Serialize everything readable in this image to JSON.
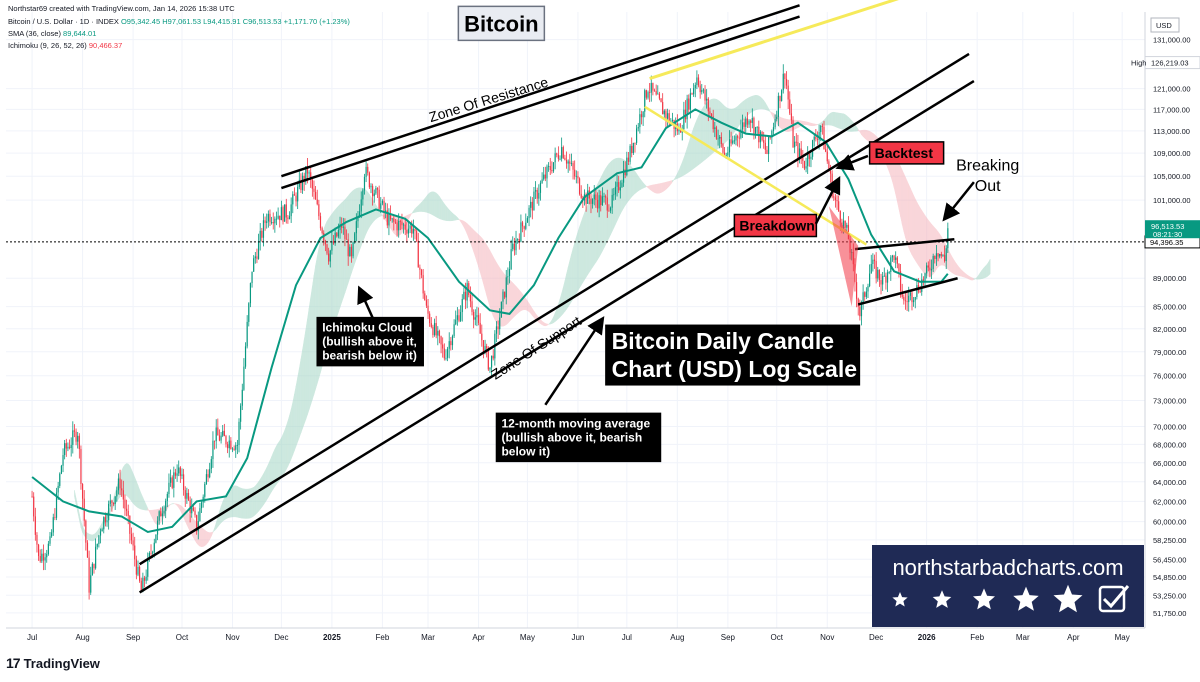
{
  "header": {
    "creator": "Northstar69 created with TradingView.com, Jan 14, 2026 15:38 UTC",
    "symbol": "Bitcoin / U.S. Dollar · 1D · INDEX",
    "ohlc": "O95,342.45  H97,061.53  L94,415.91  C96,513.53  +1,171.70 (+1.23%)",
    "sma": "SMA (36, close)",
    "sma_value": "89,644.01",
    "ichimoku": "Ichimoku (9, 26, 52, 26)",
    "ichimoku_value": "90,466.37"
  },
  "watermark": {
    "logo": "17",
    "text": "TradingView"
  },
  "brand": {
    "site": "northstarbadcharts.com"
  },
  "colors": {
    "up": "#089981",
    "down": "#f23645",
    "sma": "#089981",
    "cloud_up": "#a5d6c5",
    "cloud_down": "#f5b5bc",
    "gold": "#f6ea5a",
    "brand_bg": "#1f2a55"
  },
  "chart_data": {
    "type": "candlestick",
    "title": "Bitcoin Daily Candle Chart (USD) Log Scale",
    "y_scale": "log",
    "currency": "USD",
    "ylim": [
      50500,
      137000
    ],
    "y_ticks": [
      "131,000.00",
      "126,219.03",
      "121,000.00",
      "117,000.00",
      "113,000.00",
      "109,000.00",
      "105,000.00",
      "101,000.00",
      "94,396.35",
      "89,000.00",
      "85,000.00",
      "82,000.00",
      "79,000.00",
      "76,000.00",
      "73,000.00",
      "70,000.00",
      "68,000.00",
      "66,000.00",
      "64,000.00",
      "62,000.00",
      "60,000.00",
      "58,250.00",
      "56,450.00",
      "54,850.00",
      "53,250.00",
      "51,750.00"
    ],
    "x_ticks": [
      "Jul",
      "Aug",
      "Sep",
      "Oct",
      "Nov",
      "Dec",
      "2025",
      "Feb",
      "Mar",
      "Apr",
      "May",
      "Jun",
      "Jul",
      "Aug",
      "Sep",
      "Oct",
      "Nov",
      "Dec",
      "2026",
      "Feb",
      "Mar",
      "Apr",
      "May"
    ],
    "x_tick_dates": [
      "2024-07-01",
      "2024-08-01",
      "2024-09-01",
      "2024-10-01",
      "2024-11-01",
      "2024-12-01",
      "2025-01-01",
      "2025-02-01",
      "2025-03-01",
      "2025-04-01",
      "2025-05-01",
      "2025-06-01",
      "2025-07-01",
      "2025-08-01",
      "2025-09-01",
      "2025-10-01",
      "2025-11-01",
      "2025-12-01",
      "2026-01-01",
      "2026-02-01",
      "2026-03-01",
      "2026-04-01",
      "2026-05-01"
    ],
    "last_price": {
      "label": "96,513.53",
      "value": 96513.53,
      "countdown": "08:21:30"
    },
    "high_marker": {
      "label": "High",
      "value": "126,219.03"
    },
    "dotted_level": "94,396.35",
    "unit_label": "USD",
    "price_path": [
      [
        "2024-07-01",
        62500
      ],
      [
        "2024-07-05",
        56500
      ],
      [
        "2024-07-12",
        57800
      ],
      [
        "2024-07-20",
        67000
      ],
      [
        "2024-07-29",
        69500
      ],
      [
        "2024-08-05",
        54000
      ],
      [
        "2024-08-12",
        59500
      ],
      [
        "2024-08-24",
        64000
      ],
      [
        "2024-09-06",
        53500
      ],
      [
        "2024-09-18",
        61000
      ],
      [
        "2024-09-28",
        65500
      ],
      [
        "2024-10-10",
        59500
      ],
      [
        "2024-10-21",
        69000
      ],
      [
        "2024-11-04",
        68000
      ],
      [
        "2024-11-13",
        90500
      ],
      [
        "2024-11-22",
        98500
      ],
      [
        "2024-12-05",
        99000
      ],
      [
        "2024-12-17",
        106000
      ],
      [
        "2024-12-30",
        92500
      ],
      [
        "2025-01-07",
        97000
      ],
      [
        "2025-01-13",
        91500
      ],
      [
        "2025-01-21",
        106000
      ],
      [
        "2025-02-05",
        97500
      ],
      [
        "2025-02-20",
        96500
      ],
      [
        "2025-02-28",
        84500
      ],
      [
        "2025-03-11",
        78500
      ],
      [
        "2025-03-25",
        87500
      ],
      [
        "2025-04-08",
        77000
      ],
      [
        "2025-04-22",
        93500
      ],
      [
        "2025-05-09",
        103500
      ],
      [
        "2025-05-22",
        110000
      ],
      [
        "2025-06-05",
        101500
      ],
      [
        "2025-06-22",
        100500
      ],
      [
        "2025-07-03",
        109000
      ],
      [
        "2025-07-14",
        121500
      ],
      [
        "2025-07-25",
        116000
      ],
      [
        "2025-08-02",
        113000
      ],
      [
        "2025-08-13",
        123500
      ],
      [
        "2025-08-30",
        108500
      ],
      [
        "2025-09-14",
        116000
      ],
      [
        "2025-09-25",
        109000
      ],
      [
        "2025-10-06",
        124500
      ],
      [
        "2025-10-11",
        111000
      ],
      [
        "2025-10-18",
        107000
      ],
      [
        "2025-10-28",
        114000
      ],
      [
        "2025-11-05",
        101500
      ],
      [
        "2025-11-14",
        95000
      ],
      [
        "2025-11-21",
        84000
      ],
      [
        "2025-11-28",
        91000
      ],
      [
        "2025-12-05",
        88500
      ],
      [
        "2025-12-12",
        92500
      ],
      [
        "2025-12-18",
        85500
      ],
      [
        "2025-12-26",
        87500
      ],
      [
        "2026-01-02",
        90000
      ],
      [
        "2026-01-07",
        93500
      ],
      [
        "2026-01-12",
        91500
      ],
      [
        "2026-01-14",
        96513
      ]
    ],
    "sma_path": [
      [
        "2024-07-01",
        64500
      ],
      [
        "2024-07-20",
        62000
      ],
      [
        "2024-08-05",
        61000
      ],
      [
        "2024-08-25",
        60500
      ],
      [
        "2024-09-10",
        59000
      ],
      [
        "2024-09-25",
        59500
      ],
      [
        "2024-10-10",
        62000
      ],
      [
        "2024-10-28",
        62500
      ],
      [
        "2024-11-10",
        66500
      ],
      [
        "2024-11-25",
        77000
      ],
      [
        "2024-12-10",
        88000
      ],
      [
        "2024-12-25",
        95000
      ],
      [
        "2025-01-10",
        97500
      ],
      [
        "2025-01-28",
        99500
      ],
      [
        "2025-02-15",
        98000
      ],
      [
        "2025-03-01",
        95000
      ],
      [
        "2025-03-20",
        88500
      ],
      [
        "2025-04-08",
        84500
      ],
      [
        "2025-04-20",
        84000
      ],
      [
        "2025-05-05",
        88000
      ],
      [
        "2025-05-20",
        95000
      ],
      [
        "2025-06-05",
        101500
      ],
      [
        "2025-06-25",
        105500
      ],
      [
        "2025-07-10",
        106500
      ],
      [
        "2025-07-25",
        113500
      ],
      [
        "2025-08-12",
        117000
      ],
      [
        "2025-08-28",
        114500
      ],
      [
        "2025-09-12",
        112500
      ],
      [
        "2025-09-28",
        112000
      ],
      [
        "2025-10-14",
        114500
      ],
      [
        "2025-10-31",
        111000
      ],
      [
        "2025-11-14",
        104500
      ],
      [
        "2025-11-28",
        95500
      ],
      [
        "2025-12-12",
        90000
      ],
      [
        "2025-12-28",
        88500
      ],
      [
        "2026-01-10",
        88500
      ],
      [
        "2026-01-14",
        89644
      ]
    ],
    "annotations": [
      {
        "type": "label",
        "text": "Bitcoin"
      },
      {
        "type": "trendline_label",
        "text": "Zone Of Resistance"
      },
      {
        "type": "trendline_label",
        "text": "Zone Of Support"
      },
      {
        "type": "callout",
        "text": "Backtest"
      },
      {
        "type": "callout",
        "text": "Breakdown"
      },
      {
        "type": "callout",
        "text": "Breaking Out"
      },
      {
        "type": "note",
        "lines": [
          "Ichimoku Cloud",
          "(bullish above it,",
          "bearish below it)"
        ]
      },
      {
        "type": "note",
        "lines": [
          "12-month moving average",
          "(bullish above it, bearish",
          "below it)"
        ]
      },
      {
        "type": "title_box",
        "lines": [
          "Bitcoin Daily Candle",
          "Chart (USD) Log Scale"
        ]
      }
    ]
  }
}
